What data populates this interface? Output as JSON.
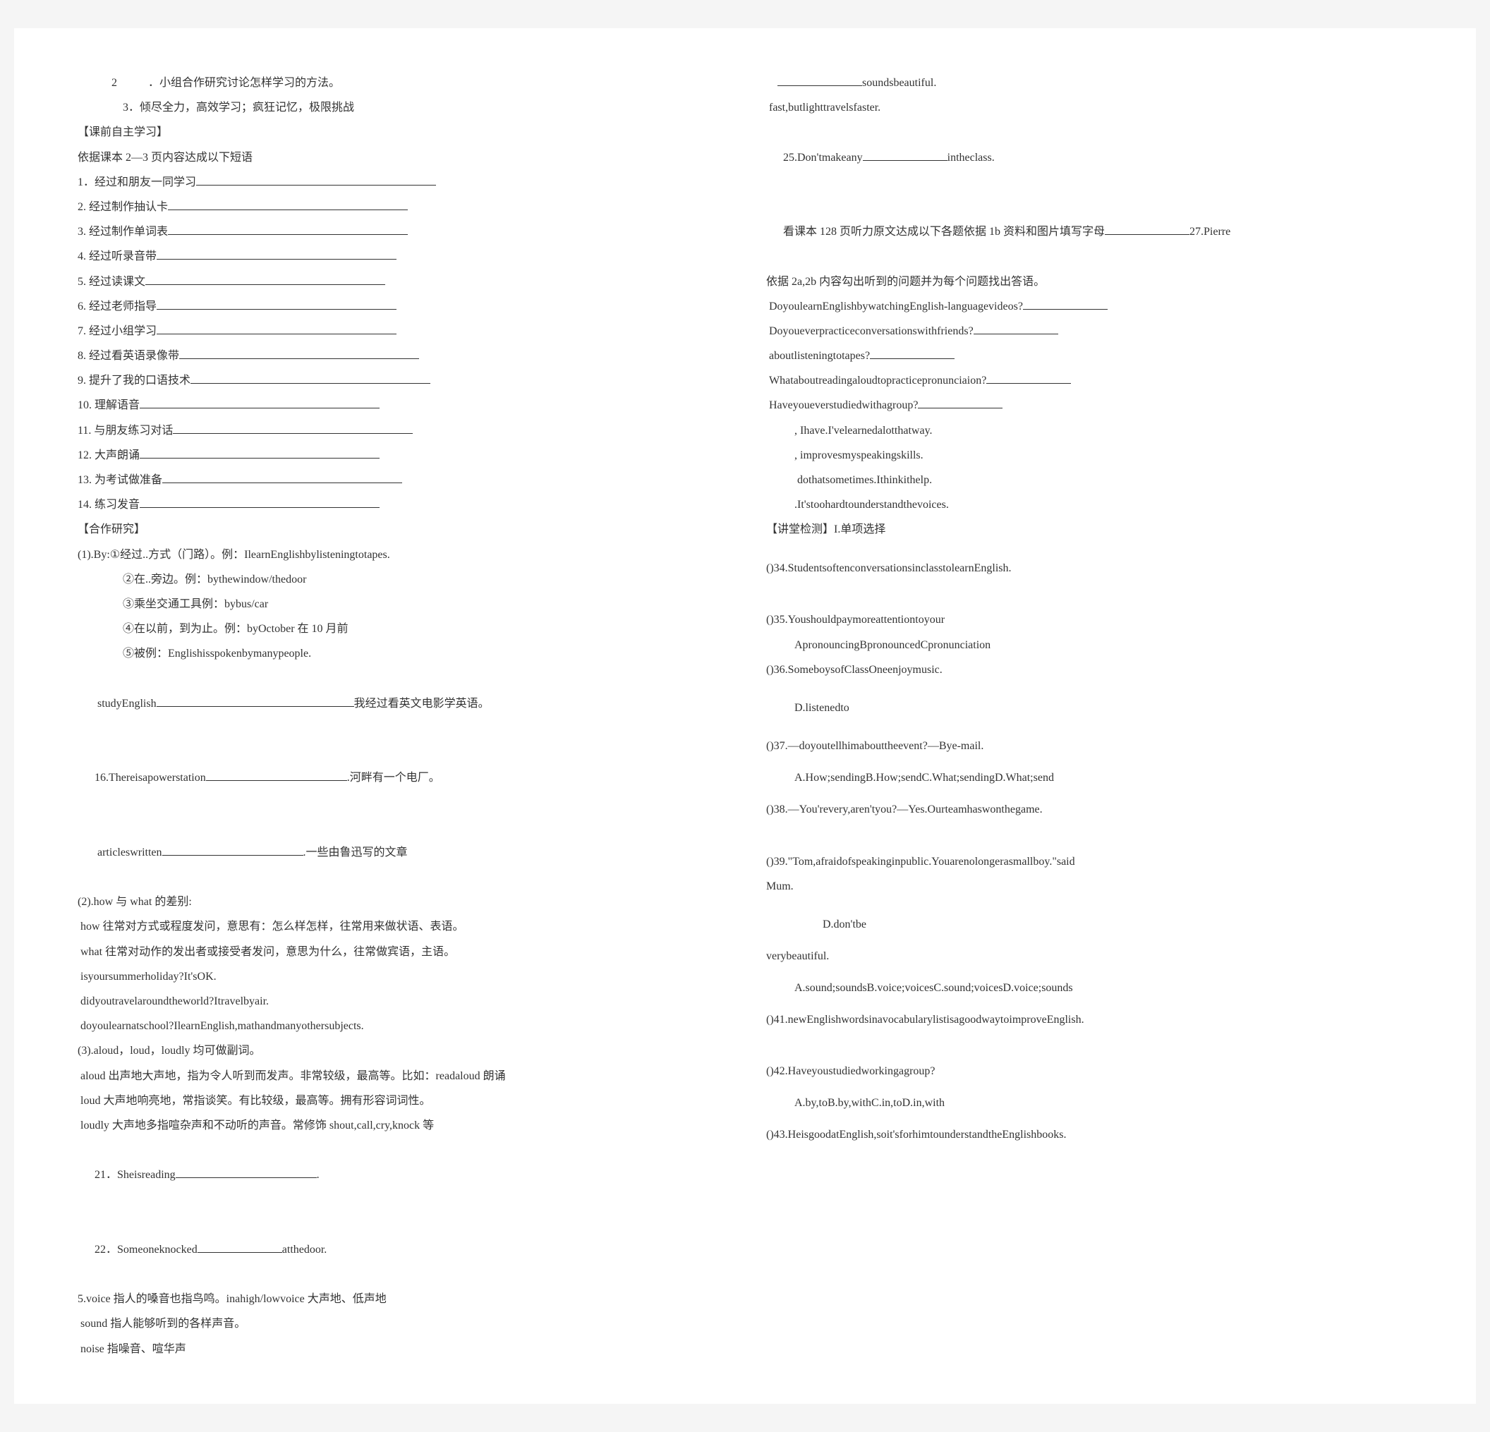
{
  "left": {
    "l1": "2           ．小组合作研究讨论怎样学习的方法。",
    "l2": "3．倾尽全力，高效学习；疯狂记忆，极限挑战",
    "l3": "【课前自主学习】",
    "l4": "依据课本 2—3 页内容达成以下短语",
    "items": [
      "1．经过和朋友一同学习",
      "2. 经过制作抽认卡",
      "3. 经过制作单词表",
      "4. 经过听录音带",
      "5. 经过读课文",
      "6. 经过老师指导",
      "7. 经过小组学习",
      "8. 经过看英语录像带",
      "9. 提升了我的口语技术",
      "10. 理解语音",
      "11. 与朋友练习对话",
      "12. 大声朗诵",
      "13. 为考试做准备",
      "14. 练习发音"
    ],
    "coop": "【合作研究】",
    "by1": "(1).By:①经过..方式（门路）。例：IlearnEnglishbylisteningtotapes.",
    "by2": "②在..旁边。例：bythewindow/thedoor",
    "by3": "③乘坐交通工具例：bybus/car",
    "by4": "④在以前，到为止。例：byOctober 在 10 月前",
    "by5": "⑤被例：Englishisspokenbymanypeople.",
    "study_a": " studyEnglish",
    "study_b": "我经过看英文电影学英语。",
    "power_a": "16.Thereisapowerstation",
    "power_b": ".河畔有一个电厂。",
    "art_a": " articleswritten",
    "art_b": ".一些由鲁迅写的文章",
    "how1": "(2).how 与 what 的差别:",
    "how2": " how 往常对方式或程度发问，意思有：怎么样怎样，往常用来做状语、表语。",
    "how3": " what 往常对动作的发出者或接受者发问，意思为什么，往常做宾语，主语。",
    "how4": " isyoursummerholiday?It'sOK.",
    "how5": " didyoutravelaroundtheworld?Itravelbyair.",
    "how6": " doyoulearnatschool?IlearnEnglish,mathandmanyothersubjects.",
    "aloud1": "(3).aloud，loud，loudly 均可做副词。",
    "aloud2": " aloud 出声地大声地，指为令人听到而发声。非常较级，最高等。比如：readaloud 朗诵",
    "aloud3": " loud 大声地响亮地，常指谈笑。有比较级，最高等。拥有形容词词性。",
    "aloud4": " loudly 大声地多指喧杂声和不动听的声音。常修饰 shout,call,cry,knock 等",
    "q21_a": "21．Sheisreading",
    "q21_b": ".",
    "q22_a": "22．Someoneknocked",
    "q22_b": "atthedoor.",
    "voice1": "5.voice 指人的嗓音也指鸟鸣。inahigh/lowvoice 大声地、低声地",
    "voice2": " sound 指人能够听到的各样声音。",
    "voice3": " noise 指噪音、喧华声"
  },
  "right": {
    "r1_b": "soundsbeautiful.",
    "r2": " fast,butlighttravelsfaster.",
    "r3_a": "25.Don'tmakeany",
    "r3_b": "intheclass.",
    "r4_a": "看课本 128 页听力原文达成以下各题依据 1b 资料和图片填写字母",
    "r4_b": "27.Pierre",
    "r5": "依据 2a,2b 内容勾出听到的问题并为每个问题找出答语。",
    "r6": " DoyoulearnEnglishbywatchingEnglish-languagevideos?",
    "r7": " Doyoueverpracticeconversationswithfriends?",
    "r8": " aboutlisteningtotapes?",
    "r9": " Whataboutreadingaloudtopracticepronunciaion?",
    "r10": " Haveyoueverstudiedwithagroup?",
    "r11": ", Ihave.I'velearnedalotthatway.",
    "r12": ", improvesmyspeakingskills.",
    "r13": " dothatsometimes.Ithinkithelp.",
    "r14": ".It'stoohardtounderstandthevoices.",
    "r15": "【讲堂检测】I.单项选择",
    "q34": "()34.StudentsoftenconversationsinclasstolearnEnglish.",
    "q35a": "()35.Youshouldpaymoreattentiontoyour",
    "q35b": "ApronouncingBpronouncedCpronunciation",
    "q36": "()36.SomeboysofClassOneenjoymusic.",
    "q36d": "D.listenedto",
    "q37": "()37.—doyoutellhimabouttheevent?—Bye-mail.",
    "q37o": "A.How;sendingB.How;sendC.What;sendingD.What;send",
    "q38": "()38.—You'revery,aren'tyou?—Yes.Ourteamhaswonthegame.",
    "q39a": "()39.\"Tom,afraidofspeakinginpublic.Youarenolongerasmallboy.\"said",
    "q39b": "Mum.",
    "q39d": "D.don'tbe",
    "vb": "verybeautiful.",
    "vopt": "A.sound;soundsB.voice;voicesC.sound;voicesD.voice;sounds",
    "q41": "()41.newEnglishwordsinavocabularylistisagoodwaytoimproveEnglish.",
    "q42": "()42.Haveyoustudiedworkingagroup?",
    "q42o": "A.by,toB.by,withC.in,toD.in,with",
    "q43": "()43.HeisgoodatEnglish,soit'sforhimtounderstandtheEnglishbooks."
  }
}
